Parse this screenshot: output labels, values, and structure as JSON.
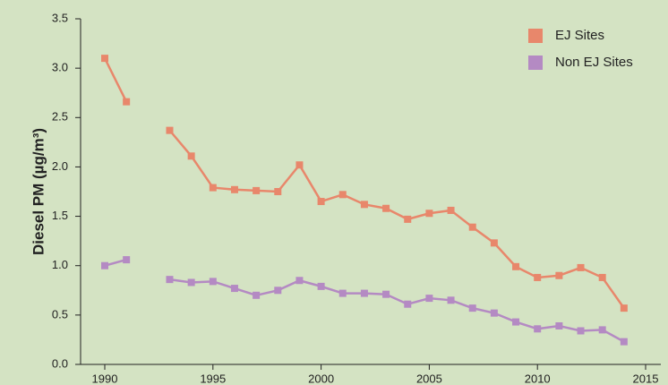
{
  "chart_data": {
    "type": "line",
    "y_label": "Diesel PM (µg/m³)",
    "x": [
      1990,
      1991,
      1992,
      1993,
      1994,
      1995,
      1996,
      1997,
      1998,
      1999,
      2000,
      2001,
      2002,
      2003,
      2004,
      2005,
      2006,
      2007,
      2008,
      2009,
      2010,
      2011,
      2012,
      2013,
      2014
    ],
    "series": [
      {
        "name": "EJ Sites",
        "color": "#e8876b",
        "values": [
          3.1,
          2.66,
          null,
          2.37,
          2.11,
          1.79,
          1.77,
          1.76,
          1.75,
          2.02,
          1.65,
          1.72,
          1.62,
          1.58,
          1.47,
          1.53,
          1.56,
          1.39,
          1.23,
          0.99,
          0.88,
          0.9,
          0.98,
          0.88,
          0.57
        ]
      },
      {
        "name": "Non EJ Sites",
        "color": "#b48ac3",
        "values": [
          1.0,
          1.06,
          null,
          0.86,
          0.83,
          0.84,
          0.77,
          0.7,
          0.75,
          0.85,
          0.79,
          0.72,
          0.72,
          0.71,
          0.61,
          0.67,
          0.65,
          0.57,
          0.52,
          0.43,
          0.36,
          0.39,
          0.34,
          0.35,
          0.23
        ]
      }
    ],
    "xlim": [
      1990,
      2015
    ],
    "xticks": [
      1990,
      1995,
      2000,
      2005,
      2010,
      2015
    ],
    "ylim": [
      0,
      3.5
    ],
    "yticks": [
      {
        "value": 0,
        "label": "0.0"
      },
      {
        "value": 0.5,
        "label": "0.5"
      },
      {
        "value": 1,
        "label": "1.0"
      },
      {
        "value": 1.5,
        "label": "1.5"
      },
      {
        "value": 2,
        "label": "2.0"
      },
      {
        "value": 2.5,
        "label": "2.5"
      },
      {
        "value": 3,
        "label": "3.0"
      },
      {
        "value": 3.5,
        "label": "3.5"
      }
    ],
    "legend": "top-right"
  }
}
